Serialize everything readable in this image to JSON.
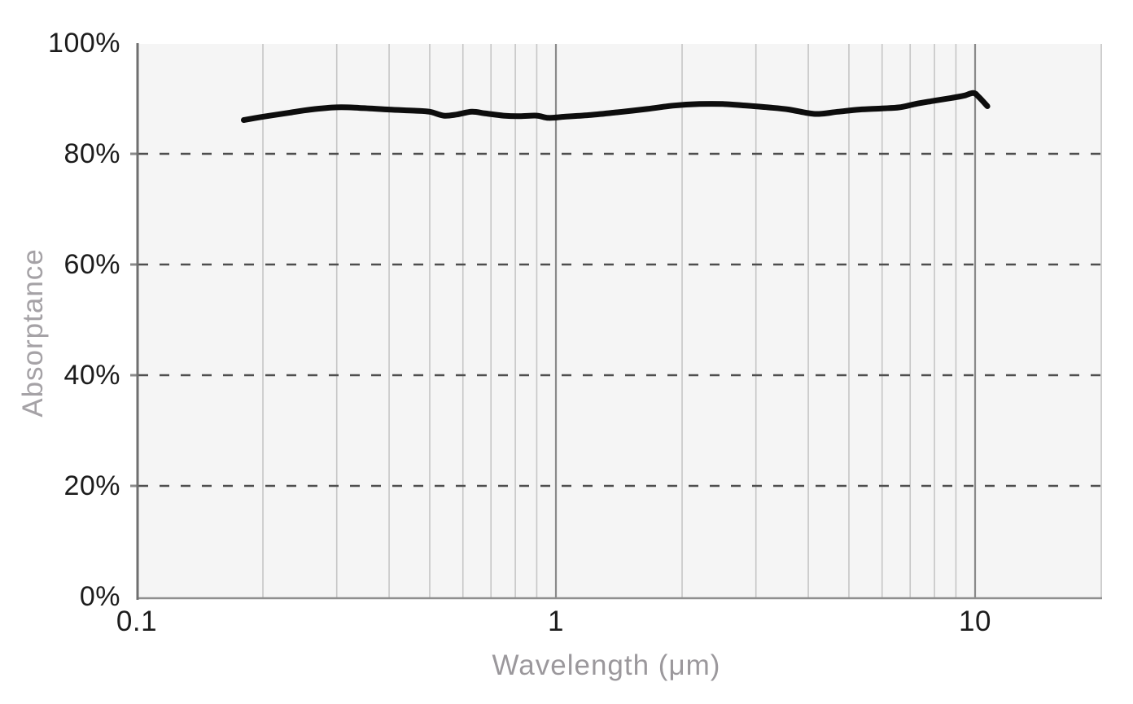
{
  "chart_data": {
    "type": "line",
    "title": "",
    "xlabel": "Wavelength (μm)",
    "ylabel": "Absorptance",
    "x_scale": "log",
    "x_range": [
      0.1,
      20
    ],
    "y_range": [
      0,
      100
    ],
    "grid": "on",
    "legend": "none",
    "x_major_ticks": [
      {
        "value": 0.1,
        "label": "0.1"
      },
      {
        "value": 1,
        "label": "1"
      },
      {
        "value": 10,
        "label": "10"
      }
    ],
    "x_minor_gridlines": [
      0.2,
      0.3,
      0.4,
      0.5,
      0.6,
      0.7,
      0.8,
      0.9,
      2,
      3,
      4,
      5,
      6,
      7,
      8,
      9,
      20
    ],
    "x_major_gridlines": [
      1,
      10
    ],
    "y_ticks": [
      {
        "value": 0,
        "label": "0%"
      },
      {
        "value": 20,
        "label": "20%"
      },
      {
        "value": 40,
        "label": "40%"
      },
      {
        "value": 60,
        "label": "60%"
      },
      {
        "value": 80,
        "label": "80%"
      },
      {
        "value": 100,
        "label": "100%"
      }
    ],
    "y_dashed_gridlines": [
      20,
      40,
      60,
      80
    ],
    "series": [
      {
        "name": "Absorptance",
        "color": "#0d0d0d",
        "points": [
          [
            0.18,
            86.1
          ],
          [
            0.2,
            86.7
          ],
          [
            0.23,
            87.4
          ],
          [
            0.26,
            88.0
          ],
          [
            0.3,
            88.4
          ],
          [
            0.34,
            88.3
          ],
          [
            0.4,
            88.0
          ],
          [
            0.46,
            87.8
          ],
          [
            0.5,
            87.6
          ],
          [
            0.54,
            86.9
          ],
          [
            0.58,
            87.1
          ],
          [
            0.63,
            87.6
          ],
          [
            0.68,
            87.3
          ],
          [
            0.75,
            86.9
          ],
          [
            0.82,
            86.8
          ],
          [
            0.9,
            86.9
          ],
          [
            0.96,
            86.5
          ],
          [
            1.05,
            86.7
          ],
          [
            1.2,
            87.0
          ],
          [
            1.4,
            87.5
          ],
          [
            1.65,
            88.1
          ],
          [
            1.9,
            88.7
          ],
          [
            2.2,
            89.0
          ],
          [
            2.5,
            89.0
          ],
          [
            2.85,
            88.7
          ],
          [
            3.2,
            88.4
          ],
          [
            3.6,
            88.0
          ],
          [
            4.15,
            87.2
          ],
          [
            4.7,
            87.6
          ],
          [
            5.3,
            88.0
          ],
          [
            6.0,
            88.2
          ],
          [
            6.6,
            88.4
          ],
          [
            7.2,
            89.0
          ],
          [
            8.0,
            89.6
          ],
          [
            8.8,
            90.1
          ],
          [
            9.4,
            90.5
          ],
          [
            9.9,
            91.0
          ],
          [
            10.2,
            90.3
          ],
          [
            10.7,
            88.6
          ]
        ]
      }
    ],
    "colors": {
      "line": "#0d0d0d",
      "plot_bg": "#f5f5f5",
      "minor_grid": "#c6c6c6",
      "major_grid": "#8a8a8a",
      "dashed_grid": "#4e4e4e",
      "y_axis": "#6f6f6f",
      "x_axis": "#8f8f8f",
      "tick_text": "#1c1c1c",
      "title_text": "#9b989c"
    }
  }
}
